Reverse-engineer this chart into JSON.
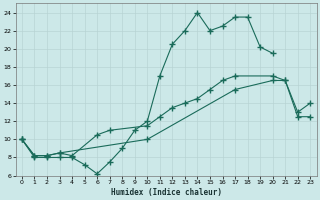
{
  "xlabel": "Humidex (Indice chaleur)",
  "bg_color": "#cce8e8",
  "line_color": "#1a6b5a",
  "xlim": [
    -0.5,
    23.5
  ],
  "ylim": [
    6,
    25
  ],
  "xticks": [
    0,
    1,
    2,
    3,
    4,
    5,
    6,
    7,
    8,
    9,
    10,
    11,
    12,
    13,
    14,
    15,
    16,
    17,
    18,
    19,
    20,
    21,
    22,
    23
  ],
  "yticks": [
    6,
    8,
    10,
    12,
    14,
    16,
    18,
    20,
    22,
    24
  ],
  "line1_x": [
    0,
    1,
    2,
    3,
    4,
    5,
    6,
    7,
    8,
    9,
    10,
    11,
    12,
    13,
    14,
    15,
    16,
    17,
    18,
    19,
    20
  ],
  "line1_y": [
    10,
    8,
    8,
    8,
    8,
    7.2,
    6.2,
    7.5,
    9,
    11,
    12,
    17,
    20.5,
    22,
    24,
    22,
    22.5,
    23.5,
    23.5,
    20.2,
    19.5
  ],
  "line2_x": [
    0,
    1,
    2,
    3,
    4,
    6,
    7,
    10,
    11,
    12,
    13,
    14,
    15,
    16,
    17,
    20,
    21,
    22,
    23
  ],
  "line2_y": [
    10,
    8.2,
    8.2,
    8.5,
    8.2,
    10.5,
    11,
    11.5,
    12.5,
    13.5,
    14,
    14.5,
    15.5,
    16.5,
    17,
    17,
    16.5,
    13,
    14
  ],
  "line3_x": [
    0,
    1,
    2,
    3,
    10,
    17,
    20,
    21,
    22,
    23
  ],
  "line3_y": [
    10,
    8.2,
    8.2,
    8.5,
    10,
    15.5,
    16.5,
    16.5,
    12.5,
    12.5
  ]
}
